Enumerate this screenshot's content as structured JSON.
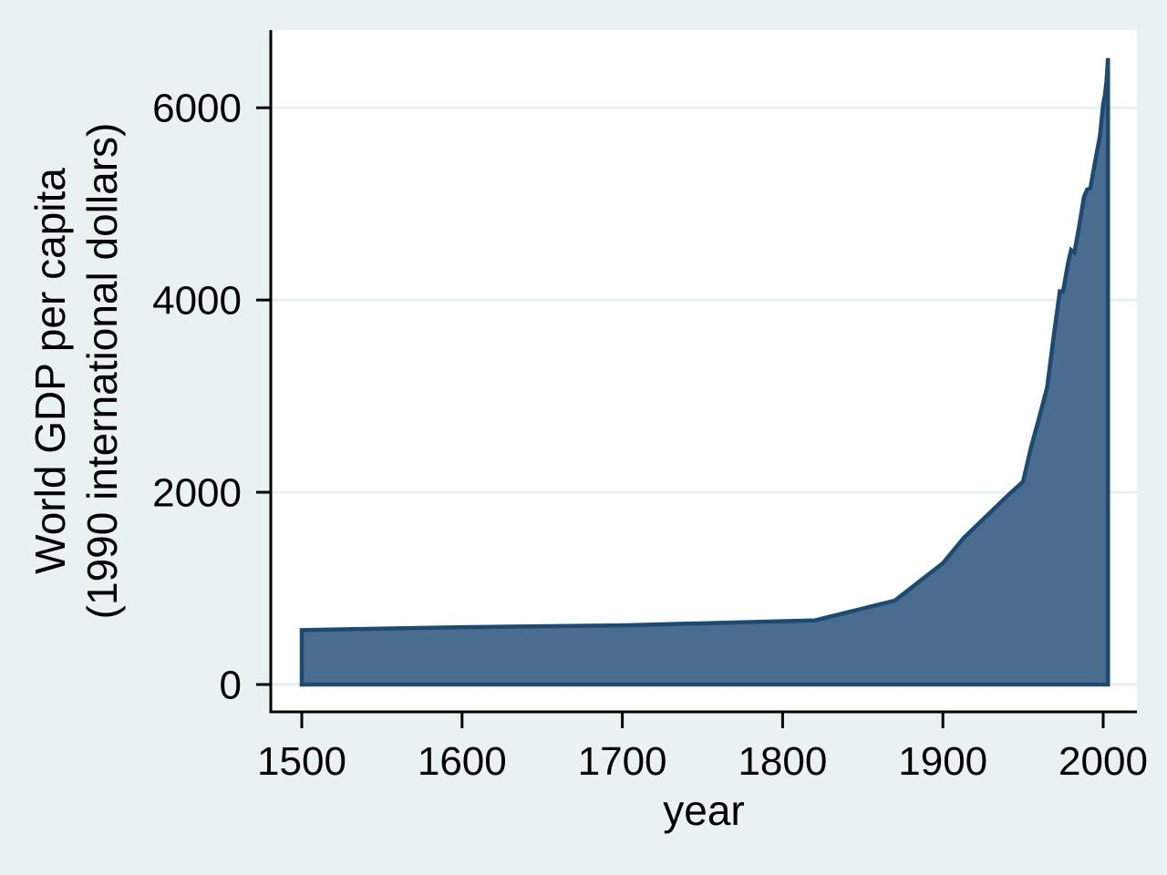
{
  "chart_data": {
    "type": "area",
    "title": "",
    "xlabel": "year",
    "ylabel_lines": [
      "World GDP per capita",
      "(1990 international dollars)"
    ],
    "series": [
      {
        "name": "World GDP per capita (1990 international dollars)",
        "points": [
          [
            1500,
            566
          ],
          [
            1600,
            596
          ],
          [
            1700,
            615
          ],
          [
            1820,
            667
          ],
          [
            1870,
            873
          ],
          [
            1900,
            1262
          ],
          [
            1913,
            1526
          ],
          [
            1940,
            1958
          ],
          [
            1950,
            2111
          ],
          [
            1955,
            2468
          ],
          [
            1960,
            2773
          ],
          [
            1965,
            3088
          ],
          [
            1970,
            3736
          ],
          [
            1973,
            4091
          ],
          [
            1975,
            4088
          ],
          [
            1978,
            4375
          ],
          [
            1980,
            4520
          ],
          [
            1982,
            4494
          ],
          [
            1985,
            4764
          ],
          [
            1988,
            5070
          ],
          [
            1990,
            5150
          ],
          [
            1992,
            5160
          ],
          [
            1995,
            5444
          ],
          [
            1998,
            5710
          ],
          [
            2000,
            6038
          ],
          [
            2001,
            6127
          ],
          [
            2002,
            6262
          ],
          [
            2003,
            6516
          ]
        ]
      }
    ],
    "xticks": [
      1500,
      1600,
      1700,
      1800,
      1900,
      2000
    ],
    "yticks": [
      0,
      2000,
      4000,
      6000
    ],
    "xlim": [
      1500,
      2003
    ],
    "ylim": [
      0,
      6516
    ],
    "grid": true,
    "legend": false,
    "colors": {
      "background": "#eaf1f3",
      "plot_background": "#ffffff",
      "gridline": "#e8eff1",
      "area_fill": "#4a6c8f",
      "area_border": "#1d4a70",
      "axis": "#000000",
      "text": "#000000"
    }
  }
}
